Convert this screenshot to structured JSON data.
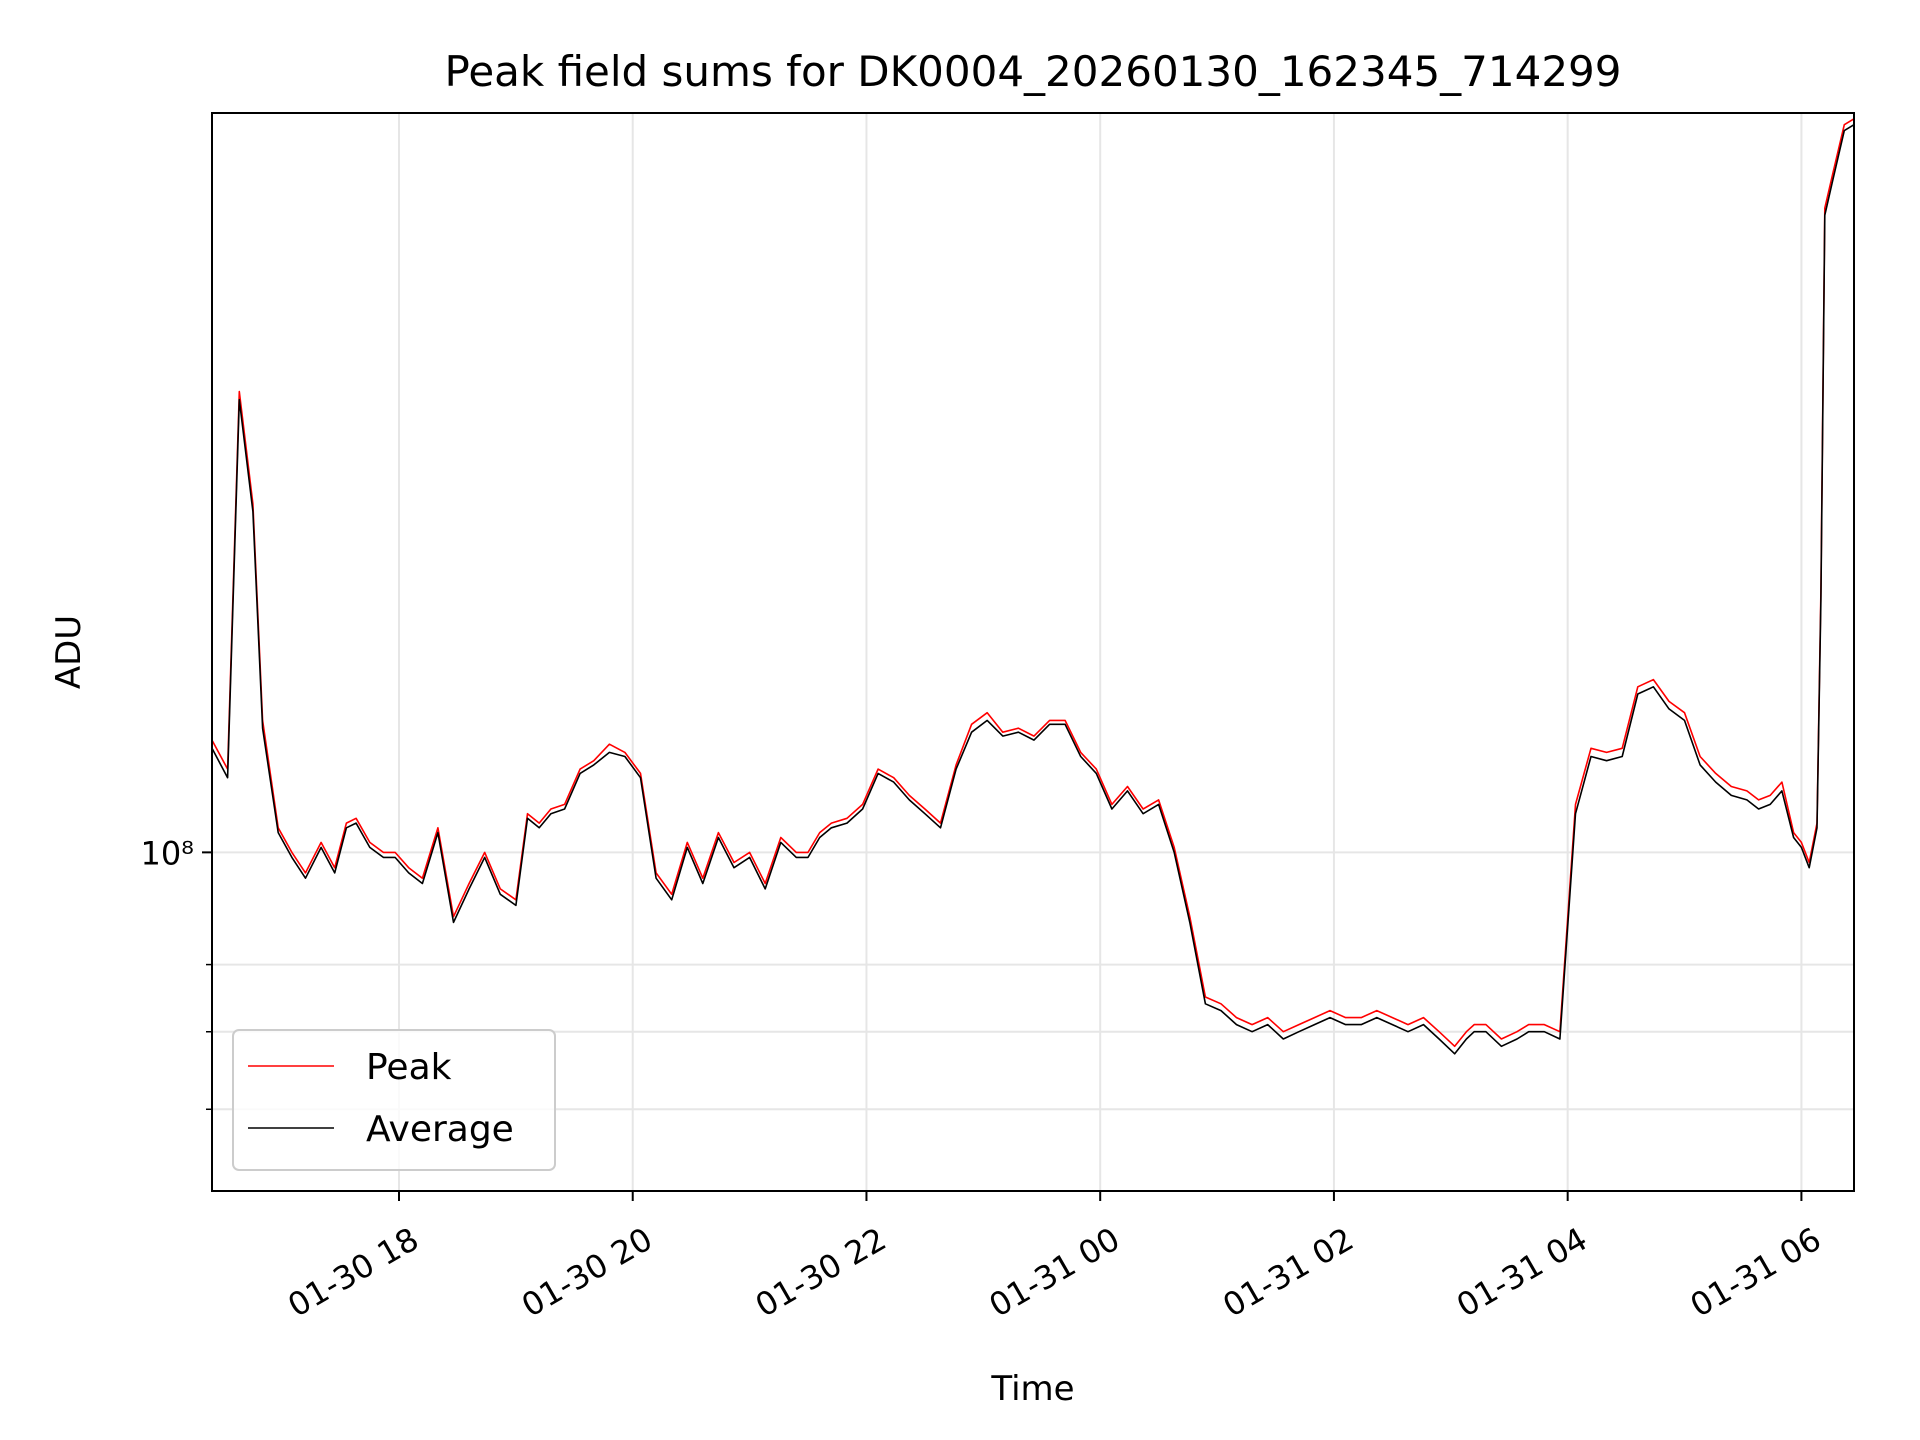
{
  "chart_data": {
    "type": "line",
    "title": "Peak field sums for DK0004_20260130_162345_714299",
    "xlabel": "Time",
    "ylabel": "ADU",
    "yscale": "log",
    "grid": true,
    "legend_position": "bottom-left",
    "colors": {
      "Peak": "#ff0000",
      "Average": "#000000",
      "grid": "#e6e6e6"
    },
    "xlim": [
      "2026-01-30 16:24",
      "2026-01-31 06:27"
    ],
    "ylim": [
      51000000,
      435000000
    ],
    "x_ticks": [
      {
        "time": "2026-01-30 18:00",
        "label": "01-30 18"
      },
      {
        "time": "2026-01-30 20:00",
        "label": "01-30 20"
      },
      {
        "time": "2026-01-30 22:00",
        "label": "01-30 22"
      },
      {
        "time": "2026-01-31 00:00",
        "label": "01-31 00"
      },
      {
        "time": "2026-01-31 02:00",
        "label": "01-31 02"
      },
      {
        "time": "2026-01-31 04:00",
        "label": "01-31 04"
      },
      {
        "time": "2026-01-31 06:00",
        "label": "01-31 06"
      }
    ],
    "y_major_ticks": [
      {
        "value": 100000000,
        "label": "10⁸"
      }
    ],
    "y_minor_ticks": [
      60000000,
      70000000,
      80000000
    ],
    "x": [
      "2026-01-30 16:24",
      "2026-01-30 16:32",
      "2026-01-30 16:38",
      "2026-01-30 16:45",
      "2026-01-30 16:50",
      "2026-01-30 16:58",
      "2026-01-30 17:05",
      "2026-01-30 17:12",
      "2026-01-30 17:20",
      "2026-01-30 17:27",
      "2026-01-30 17:33",
      "2026-01-30 17:38",
      "2026-01-30 17:45",
      "2026-01-30 17:52",
      "2026-01-30 17:58",
      "2026-01-30 18:05",
      "2026-01-30 18:12",
      "2026-01-30 18:20",
      "2026-01-30 18:28",
      "2026-01-30 18:36",
      "2026-01-30 18:44",
      "2026-01-30 18:52",
      "2026-01-30 19:00",
      "2026-01-30 19:06",
      "2026-01-30 19:12",
      "2026-01-30 19:18",
      "2026-01-30 19:25",
      "2026-01-30 19:33",
      "2026-01-30 19:40",
      "2026-01-30 19:48",
      "2026-01-30 19:56",
      "2026-01-30 20:04",
      "2026-01-30 20:12",
      "2026-01-30 20:20",
      "2026-01-30 20:28",
      "2026-01-30 20:36",
      "2026-01-30 20:44",
      "2026-01-30 20:52",
      "2026-01-30 21:00",
      "2026-01-30 21:08",
      "2026-01-30 21:16",
      "2026-01-30 21:24",
      "2026-01-30 21:30",
      "2026-01-30 21:36",
      "2026-01-30 21:42",
      "2026-01-30 21:50",
      "2026-01-30 21:58",
      "2026-01-30 22:06",
      "2026-01-30 22:14",
      "2026-01-30 22:22",
      "2026-01-30 22:30",
      "2026-01-30 22:38",
      "2026-01-30 22:46",
      "2026-01-30 22:54",
      "2026-01-30 23:02",
      "2026-01-30 23:10",
      "2026-01-30 23:18",
      "2026-01-30 23:26",
      "2026-01-30 23:34",
      "2026-01-30 23:42",
      "2026-01-30 23:50",
      "2026-01-30 23:58",
      "2026-01-31 00:06",
      "2026-01-31 00:14",
      "2026-01-31 00:22",
      "2026-01-31 00:30",
      "2026-01-31 00:38",
      "2026-01-31 00:46",
      "2026-01-31 00:54",
      "2026-01-31 01:02",
      "2026-01-31 01:10",
      "2026-01-31 01:18",
      "2026-01-31 01:26",
      "2026-01-31 01:34",
      "2026-01-31 01:42",
      "2026-01-31 01:50",
      "2026-01-31 01:58",
      "2026-01-31 02:06",
      "2026-01-31 02:14",
      "2026-01-31 02:22",
      "2026-01-31 02:30",
      "2026-01-31 02:38",
      "2026-01-31 02:46",
      "2026-01-31 02:54",
      "2026-01-31 03:02",
      "2026-01-31 03:08",
      "2026-01-31 03:12",
      "2026-01-31 03:18",
      "2026-01-31 03:26",
      "2026-01-31 03:34",
      "2026-01-31 03:40",
      "2026-01-31 03:48",
      "2026-01-31 03:56",
      "2026-01-31 04:04",
      "2026-01-31 04:12",
      "2026-01-31 04:20",
      "2026-01-31 04:28",
      "2026-01-31 04:36",
      "2026-01-31 04:44",
      "2026-01-31 04:52",
      "2026-01-31 05:00",
      "2026-01-31 05:08",
      "2026-01-31 05:16",
      "2026-01-31 05:24",
      "2026-01-31 05:32",
      "2026-01-31 05:38",
      "2026-01-31 05:44",
      "2026-01-31 05:50",
      "2026-01-31 05:56",
      "2026-01-31 06:00",
      "2026-01-31 06:04",
      "2026-01-31 06:08",
      "2026-01-31 06:10",
      "2026-01-31 06:12",
      "2026-01-31 06:16",
      "2026-01-31 06:22",
      "2026-01-31 06:27"
    ],
    "series": [
      {
        "name": "Peak",
        "values": [
          125000000,
          118000000,
          250000000,
          200000000,
          130000000,
          105000000,
          100000000,
          96000000,
          102000000,
          97000000,
          106000000,
          107000000,
          102000000,
          100000000,
          100000000,
          97000000,
          95000000,
          105000000,
          88000000,
          94000000,
          100000000,
          93000000,
          91000000,
          108000000,
          106000000,
          109000000,
          110000000,
          118000000,
          120000000,
          124000000,
          122000000,
          117000000,
          96000000,
          92000000,
          102000000,
          95000000,
          104000000,
          98000000,
          100000000,
          94000000,
          103000000,
          100000000,
          100000000,
          104000000,
          106000000,
          107000000,
          110000000,
          118000000,
          116000000,
          112000000,
          109000000,
          106000000,
          119000000,
          129000000,
          132000000,
          127000000,
          128000000,
          126000000,
          130000000,
          130000000,
          122000000,
          118000000,
          110000000,
          114000000,
          109000000,
          111000000,
          101000000,
          88000000,
          75000000,
          74000000,
          72000000,
          71000000,
          72000000,
          70000000,
          71000000,
          72000000,
          73000000,
          72000000,
          72000000,
          73000000,
          72000000,
          71000000,
          72000000,
          70000000,
          68000000,
          70000000,
          71000000,
          71000000,
          69000000,
          70000000,
          71000000,
          71000000,
          70000000,
          110000000,
          123000000,
          122000000,
          123000000,
          139000000,
          141000000,
          135000000,
          132000000,
          121000000,
          117000000,
          114000000,
          113000000,
          111000000,
          112000000,
          115000000,
          104000000,
          102000000,
          98000000,
          106000000,
          168000000,
          360000000,
          385000000,
          425000000,
          430000000
        ]
      },
      {
        "name": "Average",
        "values": [
          123000000,
          116000000,
          246000000,
          197000000,
          128000000,
          104000000,
          99000000,
          95000000,
          101000000,
          96000000,
          105000000,
          106000000,
          101000000,
          99000000,
          99000000,
          96000000,
          94000000,
          104000000,
          87000000,
          93000000,
          99000000,
          92000000,
          90000000,
          107000000,
          105000000,
          108000000,
          109000000,
          117000000,
          119000000,
          122000000,
          121000000,
          116000000,
          95000000,
          91000000,
          101000000,
          94000000,
          103000000,
          97000000,
          99000000,
          93000000,
          102000000,
          99000000,
          99000000,
          103000000,
          105000000,
          106000000,
          109000000,
          117000000,
          115000000,
          111000000,
          108000000,
          105000000,
          118000000,
          127000000,
          130000000,
          126000000,
          127000000,
          125000000,
          129000000,
          129000000,
          121000000,
          117000000,
          109000000,
          113000000,
          108000000,
          110000000,
          100000000,
          87000000,
          74000000,
          73000000,
          71000000,
          70000000,
          71000000,
          69000000,
          70000000,
          71000000,
          72000000,
          71000000,
          71000000,
          72000000,
          71000000,
          70000000,
          71000000,
          69000000,
          67000000,
          69000000,
          70000000,
          70000000,
          68000000,
          69000000,
          70000000,
          70000000,
          69000000,
          108000000,
          121000000,
          120000000,
          121000000,
          137000000,
          139000000,
          133000000,
          130000000,
          119000000,
          115000000,
          112000000,
          111000000,
          109000000,
          110000000,
          113000000,
          103000000,
          101000000,
          97000000,
          105000000,
          165000000,
          355000000,
          380000000,
          420000000,
          425000000
        ]
      }
    ]
  }
}
